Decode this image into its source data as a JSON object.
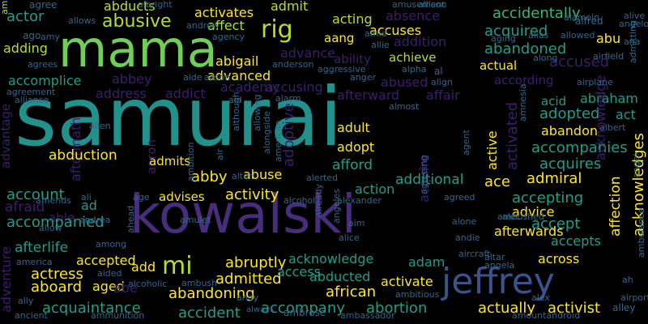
{
  "palette": {
    "background": "#000000",
    "purple": "#3b1f6a",
    "violet": "#472d7b",
    "indigo": "#433e85",
    "blue": "#3b528b",
    "slate": "#31688e",
    "steel": "#2c728e",
    "teal": "#21918c",
    "sea": "#1f9e89",
    "jade": "#35b779",
    "green": "#6ece58",
    "lime": "#b5de2b",
    "yellow": "#fde725"
  },
  "words": [
    {
      "text": "samurai",
      "color": "#21918c"
    },
    {
      "text": "kowalski",
      "color": "#472d7b"
    },
    {
      "text": "mama",
      "color": "#6ece58"
    },
    {
      "text": "jeffrey",
      "color": "#3b528b"
    },
    {
      "text": "mi",
      "color": "#b5de2b"
    },
    {
      "text": "rig",
      "color": "#b5de2b"
    },
    {
      "text": "abusive",
      "color": "#b5de2b"
    },
    {
      "text": "abducts",
      "color": "#b5de2b"
    },
    {
      "text": "activates",
      "color": "#fde725"
    },
    {
      "text": "admit",
      "color": "#b5de2b"
    },
    {
      "text": "affect",
      "color": "#b5de2b"
    },
    {
      "text": "acting",
      "color": "#b5de2b"
    },
    {
      "text": "absence",
      "color": "#3b1f6a"
    },
    {
      "text": "accidentally",
      "color": "#35b779"
    },
    {
      "text": "actor",
      "color": "#1f9e89"
    },
    {
      "text": "agree",
      "color": "#31688e"
    },
    {
      "text": "amongst",
      "color": "#b5de2b"
    },
    {
      "text": "adding",
      "color": "#b5de2b"
    },
    {
      "text": "accuses",
      "color": "#fde725"
    },
    {
      "text": "aang",
      "color": "#fde725"
    },
    {
      "text": "addition",
      "color": "#3b1f6a"
    },
    {
      "text": "acquired",
      "color": "#1f9e89"
    },
    {
      "text": "abu",
      "color": "#fde725"
    },
    {
      "text": "abigail",
      "color": "#fde725"
    },
    {
      "text": "advance",
      "color": "#3b1f6a"
    },
    {
      "text": "ability",
      "color": "#3b1f6a"
    },
    {
      "text": "achieve",
      "color": "#b5de2b"
    },
    {
      "text": "abandoned",
      "color": "#1f9e89"
    },
    {
      "text": "accused",
      "color": "#3b1f6a"
    },
    {
      "text": "actual",
      "color": "#fde725"
    },
    {
      "text": "accomplice",
      "color": "#1f9e89"
    },
    {
      "text": "abbey",
      "color": "#3b1f6a"
    },
    {
      "text": "advanced",
      "color": "#fde725"
    },
    {
      "text": "according",
      "color": "#3b1f6a"
    },
    {
      "text": "accusing",
      "color": "#3b1f6a"
    },
    {
      "text": "abused",
      "color": "#3b1f6a"
    },
    {
      "text": "academy",
      "color": "#3b1f6a"
    },
    {
      "text": "address",
      "color": "#3b1f6a"
    },
    {
      "text": "addict",
      "color": "#3b1f6a"
    },
    {
      "text": "afterward",
      "color": "#3b1f6a"
    },
    {
      "text": "affair",
      "color": "#3b1f6a"
    },
    {
      "text": "acid",
      "color": "#1f9e89"
    },
    {
      "text": "abraham",
      "color": "#1f9e89"
    },
    {
      "text": "advantage",
      "color": "#3b1f6a"
    },
    {
      "text": "aftermath",
      "color": "#3b1f6a"
    },
    {
      "text": "adopted",
      "color": "#1f9e89"
    },
    {
      "text": "act",
      "color": "#1f9e89"
    },
    {
      "text": "aaron",
      "color": "#3b1f6a"
    },
    {
      "text": "adoptive",
      "color": "#3b1f6a"
    },
    {
      "text": "adult",
      "color": "#fde725"
    },
    {
      "text": "acquire",
      "color": "#3b1f6a"
    },
    {
      "text": "active",
      "color": "#fde725"
    },
    {
      "text": "activated",
      "color": "#3b1f6a"
    },
    {
      "text": "abandon",
      "color": "#fde725"
    },
    {
      "text": "adopt",
      "color": "#fde725"
    },
    {
      "text": "accompanies",
      "color": "#1f9e89"
    },
    {
      "text": "acknowledge",
      "color": "#3b1f6a"
    },
    {
      "text": "abduction",
      "color": "#fde725"
    },
    {
      "text": "admits",
      "color": "#fde725"
    },
    {
      "text": "afford",
      "color": "#1f9e89"
    },
    {
      "text": "acquires",
      "color": "#1f9e89"
    },
    {
      "text": "abby",
      "color": "#fde725"
    },
    {
      "text": "abuse",
      "color": "#fde725"
    },
    {
      "text": "additional",
      "color": "#1f9e89"
    },
    {
      "text": "ace",
      "color": "#fde725"
    },
    {
      "text": "admiral",
      "color": "#fde725"
    },
    {
      "text": "account",
      "color": "#1f9e89"
    },
    {
      "text": "advises",
      "color": "#fde725"
    },
    {
      "text": "activity",
      "color": "#fde725"
    },
    {
      "text": "action",
      "color": "#1f9e89"
    },
    {
      "text": "accepting",
      "color": "#1f9e89"
    },
    {
      "text": "afraid",
      "color": "#3b1f6a"
    },
    {
      "text": "ad",
      "color": "#1f9e89"
    },
    {
      "text": "advice",
      "color": "#fde725"
    },
    {
      "text": "accept",
      "color": "#1f9e89"
    },
    {
      "text": "affection",
      "color": "#fde725"
    },
    {
      "text": "acknowledges",
      "color": "#fde725"
    },
    {
      "text": "able",
      "color": "#3b1f6a"
    },
    {
      "text": "accompanied",
      "color": "#1f9e89"
    },
    {
      "text": "afterlife",
      "color": "#1f9e89"
    },
    {
      "text": "afterwards",
      "color": "#fde725"
    },
    {
      "text": "accepts",
      "color": "#1f9e89"
    },
    {
      "text": "accepted",
      "color": "#fde725"
    },
    {
      "text": "abruptly",
      "color": "#fde725"
    },
    {
      "text": "acknowledge",
      "color": "#1f9e89"
    },
    {
      "text": "adam",
      "color": "#1f9e89"
    },
    {
      "text": "across",
      "color": "#fde725"
    },
    {
      "text": "actress",
      "color": "#fde725"
    },
    {
      "text": "add",
      "color": "#fde725"
    },
    {
      "text": "admitted",
      "color": "#fde725"
    },
    {
      "text": "access",
      "color": "#1f9e89"
    },
    {
      "text": "abducted",
      "color": "#1f9e89"
    },
    {
      "text": "adventure",
      "color": "#3b1f6a"
    },
    {
      "text": "aboard",
      "color": "#fde725"
    },
    {
      "text": "abandoning",
      "color": "#fde725"
    },
    {
      "text": "african",
      "color": "#fde725"
    },
    {
      "text": "activate",
      "color": "#fde725"
    },
    {
      "text": "aged",
      "color": "#fde725"
    },
    {
      "text": "abe",
      "color": "#3b1f6a"
    },
    {
      "text": "acquaintance",
      "color": "#1f9e89"
    },
    {
      "text": "accompany",
      "color": "#1f9e89"
    },
    {
      "text": "abortion",
      "color": "#1f9e89"
    },
    {
      "text": "actually",
      "color": "#fde725"
    },
    {
      "text": "activist",
      "color": "#fde725"
    },
    {
      "text": "accident",
      "color": "#1f9e89"
    },
    {
      "text": "ancient",
      "color": "#31688e"
    },
    {
      "text": "ammunition",
      "color": "#31688e"
    },
    {
      "text": "always",
      "color": "#31688e"
    },
    {
      "text": "ambrose",
      "color": "#31688e"
    },
    {
      "text": "ambassador",
      "color": "#31688e"
    },
    {
      "text": "amountandroid",
      "color": "#31688e"
    },
    {
      "text": "alley",
      "color": "#31688e"
    },
    {
      "text": "airport",
      "color": "#31688e"
    },
    {
      "text": "allows",
      "color": "#31688e"
    },
    {
      "text": "albright",
      "color": "#31688e"
    },
    {
      "text": "amusement",
      "color": "#31688e"
    },
    {
      "text": "allison",
      "color": "#31688e"
    },
    {
      "text": "alamein",
      "color": "#31688e"
    },
    {
      "text": "alive",
      "color": "#31688e"
    },
    {
      "text": "ago",
      "color": "#31688e"
    },
    {
      "text": "amy",
      "color": "#31688e"
    },
    {
      "text": "andrew",
      "color": "#31688e"
    },
    {
      "text": "agency",
      "color": "#31688e"
    },
    {
      "text": "alfred",
      "color": "#31688e"
    },
    {
      "text": "angelo",
      "color": "#31688e"
    },
    {
      "text": "amid",
      "color": "#31688e"
    },
    {
      "text": "allie",
      "color": "#31688e"
    },
    {
      "text": "aging",
      "color": "#31688e"
    },
    {
      "text": "alias",
      "color": "#31688e"
    },
    {
      "text": "allowed",
      "color": "#31688e"
    },
    {
      "text": "ana",
      "color": "#31688e"
    },
    {
      "text": "admitting",
      "color": "#31688e"
    },
    {
      "text": "agrees",
      "color": "#31688e"
    },
    {
      "text": "anderson",
      "color": "#31688e"
    },
    {
      "text": "aggressive",
      "color": "#31688e"
    },
    {
      "text": "alpha",
      "color": "#31688e"
    },
    {
      "text": "al",
      "color": "#31688e"
    },
    {
      "text": "along",
      "color": "#31688e"
    },
    {
      "text": "airfield",
      "color": "#31688e"
    },
    {
      "text": "aide",
      "color": "#31688e"
    },
    {
      "text": "alison",
      "color": "#31688e"
    },
    {
      "text": "anger",
      "color": "#31688e"
    },
    {
      "text": "align",
      "color": "#31688e"
    },
    {
      "text": "airplane",
      "color": "#31688e"
    },
    {
      "text": "agreement",
      "color": "#31688e"
    },
    {
      "text": "alliance",
      "color": "#31688e"
    },
    {
      "text": "aid",
      "color": "#31688e"
    },
    {
      "text": "alarm",
      "color": "#31688e"
    },
    {
      "text": "allowing",
      "color": "#31688e"
    },
    {
      "text": "although",
      "color": "#31688e"
    },
    {
      "text": "alongside",
      "color": "#31688e"
    },
    {
      "text": "american",
      "color": "#31688e"
    },
    {
      "text": "almost",
      "color": "#31688e"
    },
    {
      "text": "amnesia",
      "color": "#31688e"
    },
    {
      "text": "agent",
      "color": "#31688e"
    },
    {
      "text": "albert",
      "color": "#31688e"
    },
    {
      "text": "allen",
      "color": "#31688e"
    },
    {
      "text": "amends",
      "color": "#31688e"
    },
    {
      "text": "ambition",
      "color": "#31688e"
    },
    {
      "text": "air",
      "color": "#31688e"
    },
    {
      "text": "alter",
      "color": "#31688e"
    },
    {
      "text": "alerted",
      "color": "#31688e"
    },
    {
      "text": "angel",
      "color": "#31688e"
    },
    {
      "text": "alcohol",
      "color": "#31688e"
    },
    {
      "text": "alexander",
      "color": "#31688e"
    },
    {
      "text": "agreeing",
      "color": "#31688e"
    },
    {
      "text": "agreed",
      "color": "#31688e"
    },
    {
      "text": "amulet",
      "color": "#31688e"
    },
    {
      "text": "ali",
      "color": "#31688e"
    },
    {
      "text": "age",
      "color": "#31688e"
    },
    {
      "text": "allow",
      "color": "#31688e"
    },
    {
      "text": "andrea",
      "color": "#31688e"
    },
    {
      "text": "ahead",
      "color": "#31688e"
    },
    {
      "text": "already",
      "color": "#31688e"
    },
    {
      "text": "angeles",
      "color": "#31688e"
    },
    {
      "text": "aim",
      "color": "#31688e"
    },
    {
      "text": "alice",
      "color": "#31688e"
    },
    {
      "text": "alone",
      "color": "#31688e"
    },
    {
      "text": "andie",
      "color": "#31688e"
    },
    {
      "text": "alec",
      "color": "#31688e"
    },
    {
      "text": "ambushed",
      "color": "#31688e"
    },
    {
      "text": "america",
      "color": "#31688e"
    },
    {
      "text": "among",
      "color": "#31688e"
    },
    {
      "text": "aircraft",
      "color": "#31688e"
    },
    {
      "text": "altar",
      "color": "#31688e"
    },
    {
      "text": "angela",
      "color": "#31688e"
    },
    {
      "text": "ambulance",
      "color": "#31688e"
    },
    {
      "text": "aided",
      "color": "#31688e"
    },
    {
      "text": "alcoholic",
      "color": "#31688e"
    },
    {
      "text": "ambush",
      "color": "#31688e"
    },
    {
      "text": "ah",
      "color": "#31688e"
    },
    {
      "text": "andy",
      "color": "#31688e"
    },
    {
      "text": "ambitious",
      "color": "#31688e"
    },
    {
      "text": "ally",
      "color": "#31688e"
    },
    {
      "text": "alex",
      "color": "#31688e"
    }
  ]
}
